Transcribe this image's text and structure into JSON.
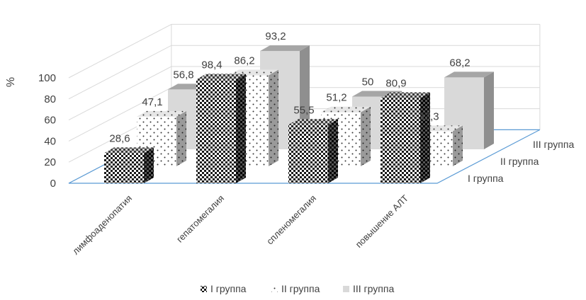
{
  "chart_data": {
    "type": "bar",
    "categories": [
      "лимфоаденопатия",
      "гепатомегалия",
      "спленомегалия",
      "повышение АЛТ"
    ],
    "series": [
      {
        "name": "I группа",
        "values": [
          28.6,
          98.4,
          55.5,
          80.9
        ],
        "labels": [
          "28,6",
          "98,4",
          "55,5",
          "80,9"
        ]
      },
      {
        "name": "II группа",
        "values": [
          47.1,
          86.2,
          51.2,
          33.3
        ],
        "labels": [
          "47,1",
          "86,2",
          "51,2",
          "33,3"
        ]
      },
      {
        "name": "III группа",
        "values": [
          56.8,
          93.2,
          50,
          68.2
        ],
        "labels": [
          "56,8",
          "93,2",
          "50",
          "68,2"
        ]
      }
    ],
    "ylabel": "%",
    "yticks": [
      "0",
      "20",
      "40",
      "60",
      "80",
      "100"
    ],
    "ylim": [
      0,
      100
    ],
    "grid": true,
    "legend": "bottom"
  }
}
